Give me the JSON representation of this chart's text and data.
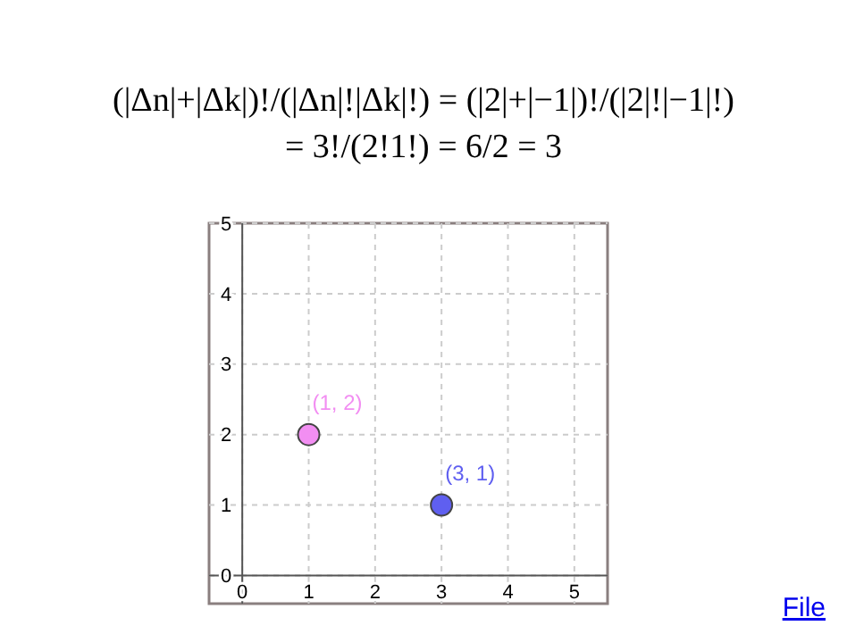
{
  "chart_data": {
    "type": "scatter",
    "title": "(|Δn|+|Δk|)!/(|Δn|!|Δk|!) = (|2|+|−1|)!/(|2|!|−1|!) = 3!/(2!1!) = 6/2 = 3",
    "series": [
      {
        "color": "#f28ef2",
        "x": [
          1
        ],
        "values": [
          2
        ]
      },
      {
        "color": "#5f5ff0",
        "x": [
          3
        ],
        "values": [
          1
        ]
      }
    ],
    "xlim": [
      -0.5,
      5.5
    ],
    "ylim": [
      -0.4,
      5
    ],
    "xticks": [
      0,
      1,
      2,
      3,
      4,
      5
    ],
    "yticks": [
      0,
      1,
      2,
      3,
      4,
      5
    ],
    "grid": true,
    "marker": "circle",
    "annotations": [
      {
        "text": "(1, 2)",
        "x": 1,
        "y": 2
      },
      {
        "text": "(3, 1)",
        "x": 3,
        "y": 1
      },
      "File"
    ]
  }
}
